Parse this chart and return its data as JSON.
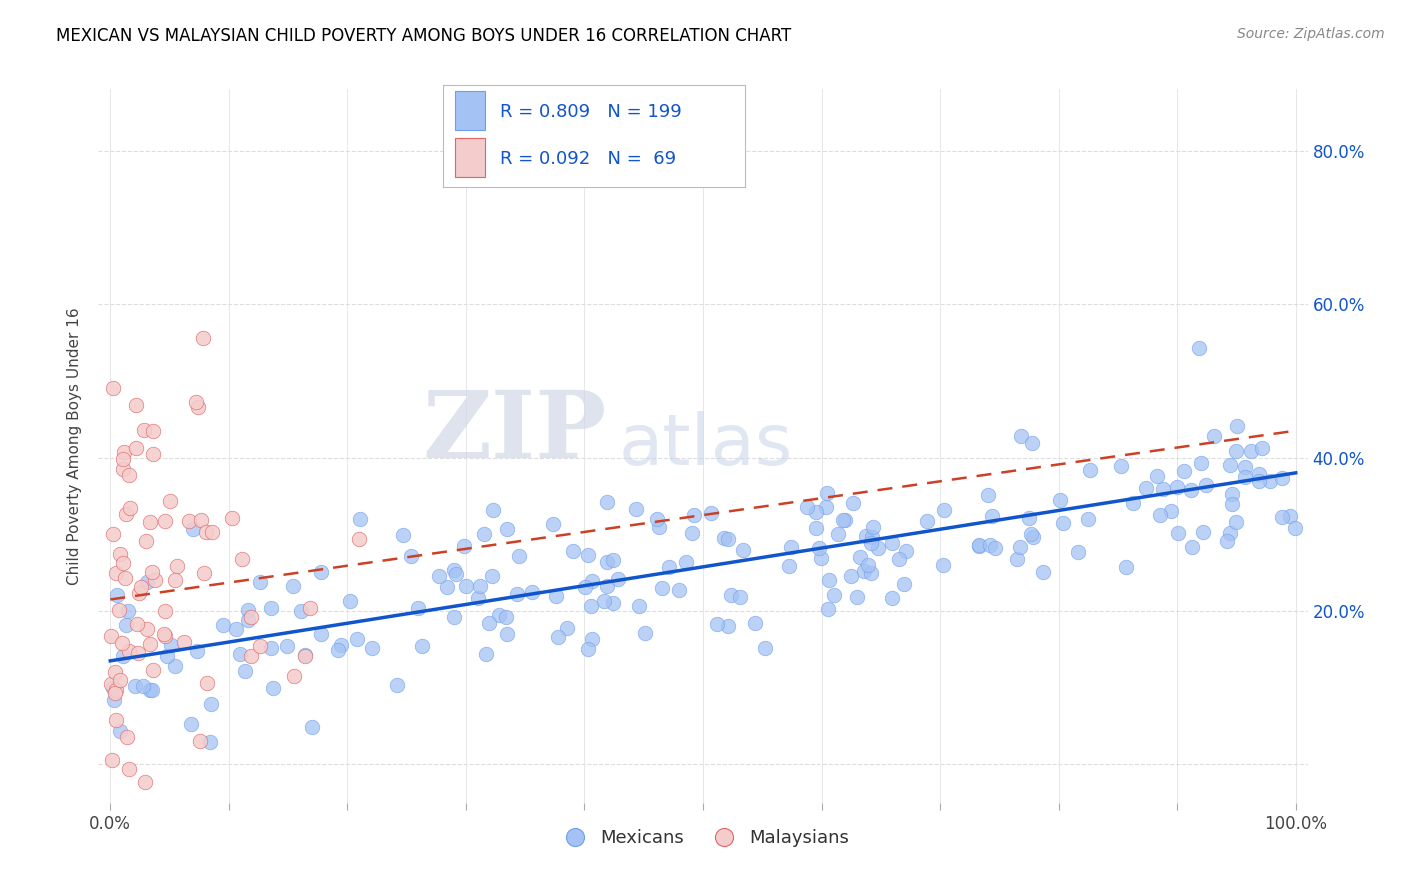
{
  "title": "MEXICAN VS MALAYSIAN CHILD POVERTY AMONG BOYS UNDER 16 CORRELATION CHART",
  "source": "Source: ZipAtlas.com",
  "ylabel": "Child Poverty Among Boys Under 16",
  "xlim": [
    -0.01,
    1.01
  ],
  "ylim": [
    -0.05,
    0.88
  ],
  "x_ticks": [
    0.0,
    0.1,
    0.2,
    0.3,
    0.4,
    0.5,
    0.6,
    0.7,
    0.8,
    0.9,
    1.0
  ],
  "x_tick_labels": [
    "0.0%",
    "",
    "",
    "",
    "",
    "",
    "",
    "",
    "",
    "",
    "100.0%"
  ],
  "y_ticks": [
    0.0,
    0.2,
    0.4,
    0.6,
    0.8
  ],
  "right_y_tick_labels": [
    "",
    "20.0%",
    "40.0%",
    "60.0%",
    "80.0%"
  ],
  "blue_fill": "#a4c2f4",
  "blue_edge": "#6d9eeb",
  "pink_fill": "#f4cccc",
  "pink_edge": "#e06666",
  "blue_line_color": "#1155cc",
  "pink_line_color": "#cc4125",
  "blue_R": 0.809,
  "blue_N": 199,
  "pink_R": 0.092,
  "pink_N": 69,
  "watermark_zip": "ZIP",
  "watermark_atlas": "atlas",
  "background_color": "#ffffff",
  "grid_color": "#dddddd",
  "title_color": "#000000",
  "source_color": "#888888",
  "right_axis_color": "#1155cc",
  "legend_text_color": "#1155cc",
  "blue_seed": 12,
  "pink_seed": 99,
  "m_blue": 0.245,
  "b_blue": 0.135,
  "m_pink": 0.22,
  "b_pink": 0.215
}
